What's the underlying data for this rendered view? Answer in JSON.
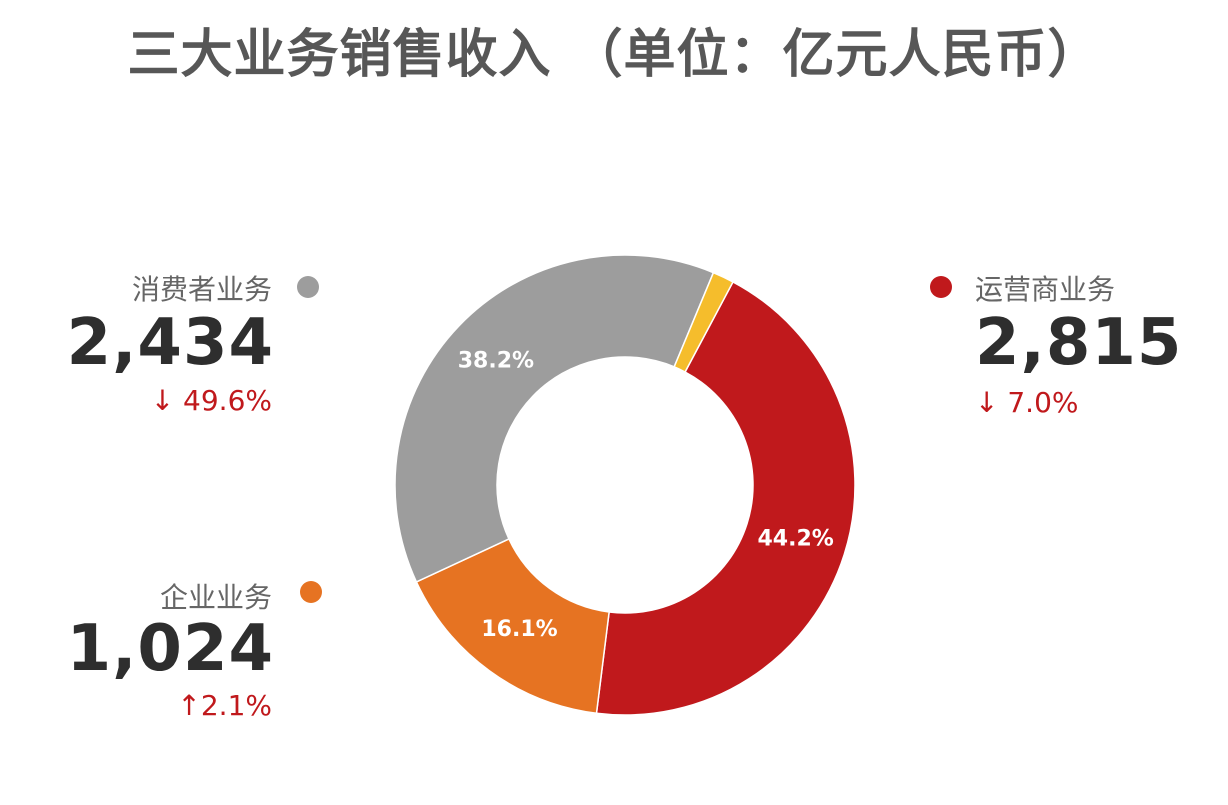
{
  "title": "三大业务销售收入 （单位：亿元人民币）",
  "chart_data": {
    "type": "pie",
    "donut": true,
    "title": "三大业务销售收入 （单位：亿元人民币）",
    "unit": "亿元人民币",
    "segments": [
      {
        "name": "运营商业务",
        "value": 2815,
        "percent": 44.2,
        "percent_label": "44.2%",
        "color": "#c0191c"
      },
      {
        "name": "企业业务",
        "value": 1024,
        "percent": 16.1,
        "percent_label": "16.1%",
        "color": "#e67322"
      },
      {
        "name": "消费者业务",
        "value": 2434,
        "percent": 38.2,
        "percent_label": "38.2%",
        "color": "#9d9d9d"
      },
      {
        "name": "",
        "value": 0,
        "percent": 1.5,
        "percent_label": "",
        "color": "#f5bd2c"
      }
    ]
  },
  "legend": {
    "consumer": {
      "name": "消费者业务",
      "value": "2,434",
      "change": "↓ 49.6%",
      "color": "#9d9d9d"
    },
    "carrier": {
      "name": "运营商业务",
      "value": "2,815",
      "change": "↓ 7.0%",
      "color": "#c0191c"
    },
    "enterprise": {
      "name": "企业业务",
      "value": "1,024",
      "change": "↑2.1%",
      "color": "#e67322"
    }
  }
}
